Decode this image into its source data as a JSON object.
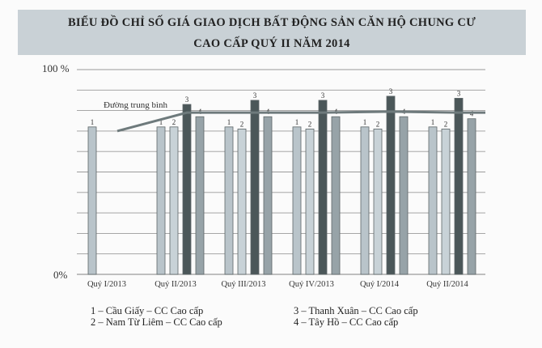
{
  "title": {
    "line1": "BIỂU ĐỒ CHỈ SỐ GIÁ GIAO DỊCH BẤT ĐỘNG SẢN CĂN HỘ CHUNG CƯ",
    "line2": "CAO CẤP QUÝ II NĂM 2014"
  },
  "axis": {
    "y_top": "100 %",
    "y_bottom": "0%"
  },
  "avg_line_label": "Đường trung bình",
  "legend": {
    "s1": "1 – Cầu Giấy – CC Cao cấp",
    "s2": "2 – Nam Từ Liêm – CC Cao cấp",
    "s3": "3 – Thanh Xuân – CC Cao cấp",
    "s4": "4 – Tây Hồ – CC Cao cấp"
  },
  "colors": {
    "s1": "#b9c4ca",
    "s2": "#c8d2d7",
    "s3": "#4b5759",
    "s4": "#97a3a8",
    "avg": "#6e7a7c",
    "grid": "#9a9a9a",
    "title_bg": "#c9d1d6"
  },
  "chart_data": {
    "type": "bar",
    "title": "BIỂU ĐỒ CHỈ SỐ GIÁ GIAO DỊCH BẤT ĐỘNG SẢN CĂN HỘ CHUNG CƯ CAO CẤP QUÝ II NĂM 2014",
    "categories": [
      "Quý I/2013",
      "Quý II/2013",
      "Quý III/2013",
      "Quý IV/2013",
      "Quý I/2014",
      "Quý II/2014"
    ],
    "series": [
      {
        "name": "1 – Cầu Giấy – CC Cao cấp",
        "label": "1",
        "values": [
          72,
          72,
          72,
          72,
          72,
          72
        ]
      },
      {
        "name": "2 – Nam Từ Liêm – CC Cao cấp",
        "label": "2",
        "values": [
          null,
          72,
          71,
          71,
          71,
          71
        ]
      },
      {
        "name": "3 – Thanh Xuân – CC Cao cấp",
        "label": "3",
        "values": [
          null,
          83,
          85,
          85,
          87,
          86
        ]
      },
      {
        "name": "4 – Tây Hồ – CC Cao cấp",
        "label": "4",
        "values": [
          null,
          77,
          77,
          77,
          77,
          76
        ]
      }
    ],
    "average_line": {
      "name": "Đường trung bình",
      "values": [
        70,
        79,
        79,
        79,
        79.5,
        79
      ]
    },
    "xlabel": "",
    "ylabel": "",
    "ylim": [
      0,
      100
    ],
    "yticks_labeled": [
      "0%",
      "100 %"
    ],
    "grid": true,
    "grid_step": 10,
    "legend_position": "bottom"
  }
}
